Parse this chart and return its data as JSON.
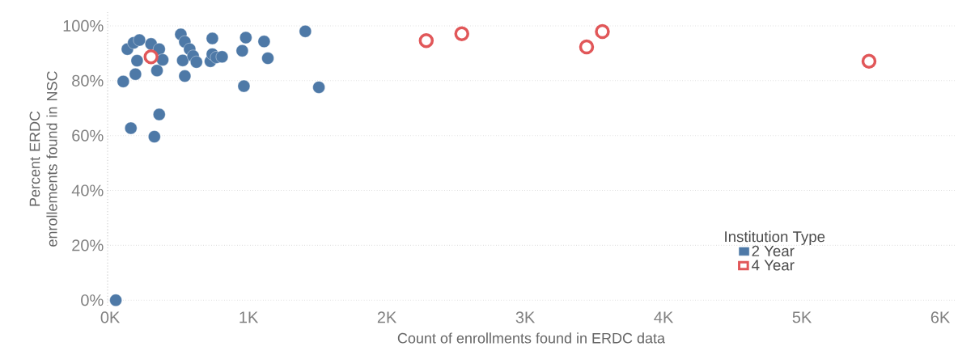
{
  "chart_data": {
    "type": "scatter",
    "xlabel": "Count of enrollments found in ERDC data",
    "ylabel": "Percent ERDC enrollements found in NSC",
    "legend_title": "Institution Type",
    "legend": "bottom right",
    "grid": "y",
    "marker": "circle",
    "xlim": [
      -18,
      6105
    ],
    "ylim": [
      -2,
      105
    ],
    "xticks": [
      {
        "value": 0,
        "label": "0K"
      },
      {
        "value": 1000,
        "label": "1K"
      },
      {
        "value": 2000,
        "label": "2K"
      },
      {
        "value": 3000,
        "label": "3K"
      },
      {
        "value": 4000,
        "label": "4K"
      },
      {
        "value": 5000,
        "label": "5K"
      },
      {
        "value": 6000,
        "label": "6K"
      }
    ],
    "yticks": [
      {
        "value": 0,
        "label": "0%"
      },
      {
        "value": 20,
        "label": "20%"
      },
      {
        "value": 40,
        "label": "40%"
      },
      {
        "value": 60,
        "label": "60%"
      },
      {
        "value": 80,
        "label": "80%"
      },
      {
        "value": 100,
        "label": "100%"
      }
    ],
    "series": [
      {
        "name": "2 Year",
        "color": "#4e79a7",
        "x": [
          41,
          95,
          125,
          150,
          170,
          183,
          195,
          212,
          296,
          320,
          339,
          355,
          355,
          380,
          511,
          525,
          540,
          540,
          575,
          600,
          624,
          725,
          739,
          739,
          768,
          809,
          955,
          967,
          981,
          1113,
          1140,
          1411,
          1509
        ],
        "values": [
          0,
          79.7,
          91.5,
          62.7,
          93.8,
          82.4,
          87.3,
          94.8,
          93.4,
          59.6,
          83.7,
          91.5,
          67.7,
          87.6,
          96.9,
          87.4,
          94.2,
          81.7,
          91.5,
          89.0,
          86.8,
          87.1,
          95.4,
          89.7,
          88.5,
          88.7,
          90.9,
          78.0,
          95.7,
          94.3,
          88.2,
          98.0,
          77.6
        ]
      },
      {
        "name": "4 Year",
        "color": "#e15759",
        "x": [
          296,
          2285,
          2542,
          3444,
          3558,
          5485
        ],
        "values": [
          88.7,
          94.6,
          97.1,
          92.3,
          97.9,
          87.1
        ]
      }
    ]
  }
}
